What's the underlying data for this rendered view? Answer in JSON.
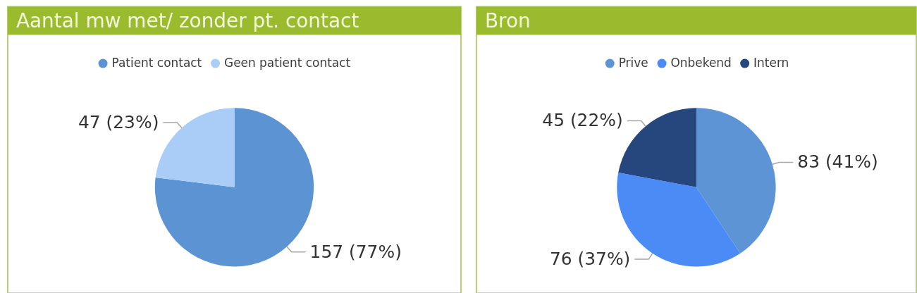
{
  "chart_data": [
    {
      "type": "pie",
      "title": "Aantal mw met/ zonder pt. contact",
      "categories": [
        "Patient contact",
        "Geen patient contact"
      ],
      "values": [
        157,
        47
      ],
      "colors": [
        "#5b93d3",
        "#a9cdf7"
      ],
      "value_labels": [
        "157 (77%)",
        "47 (23%)"
      ],
      "legend": "top"
    },
    {
      "type": "pie",
      "title": "Bron",
      "categories": [
        "Prive",
        "Onbekend",
        "Intern"
      ],
      "values": [
        83,
        76,
        45
      ],
      "colors": [
        "#5d94d6",
        "#4a8bf6",
        "#26477e"
      ],
      "value_labels": [
        "83 (41%)",
        "76 (37%)",
        "45 (22%)"
      ],
      "legend": "top"
    }
  ]
}
